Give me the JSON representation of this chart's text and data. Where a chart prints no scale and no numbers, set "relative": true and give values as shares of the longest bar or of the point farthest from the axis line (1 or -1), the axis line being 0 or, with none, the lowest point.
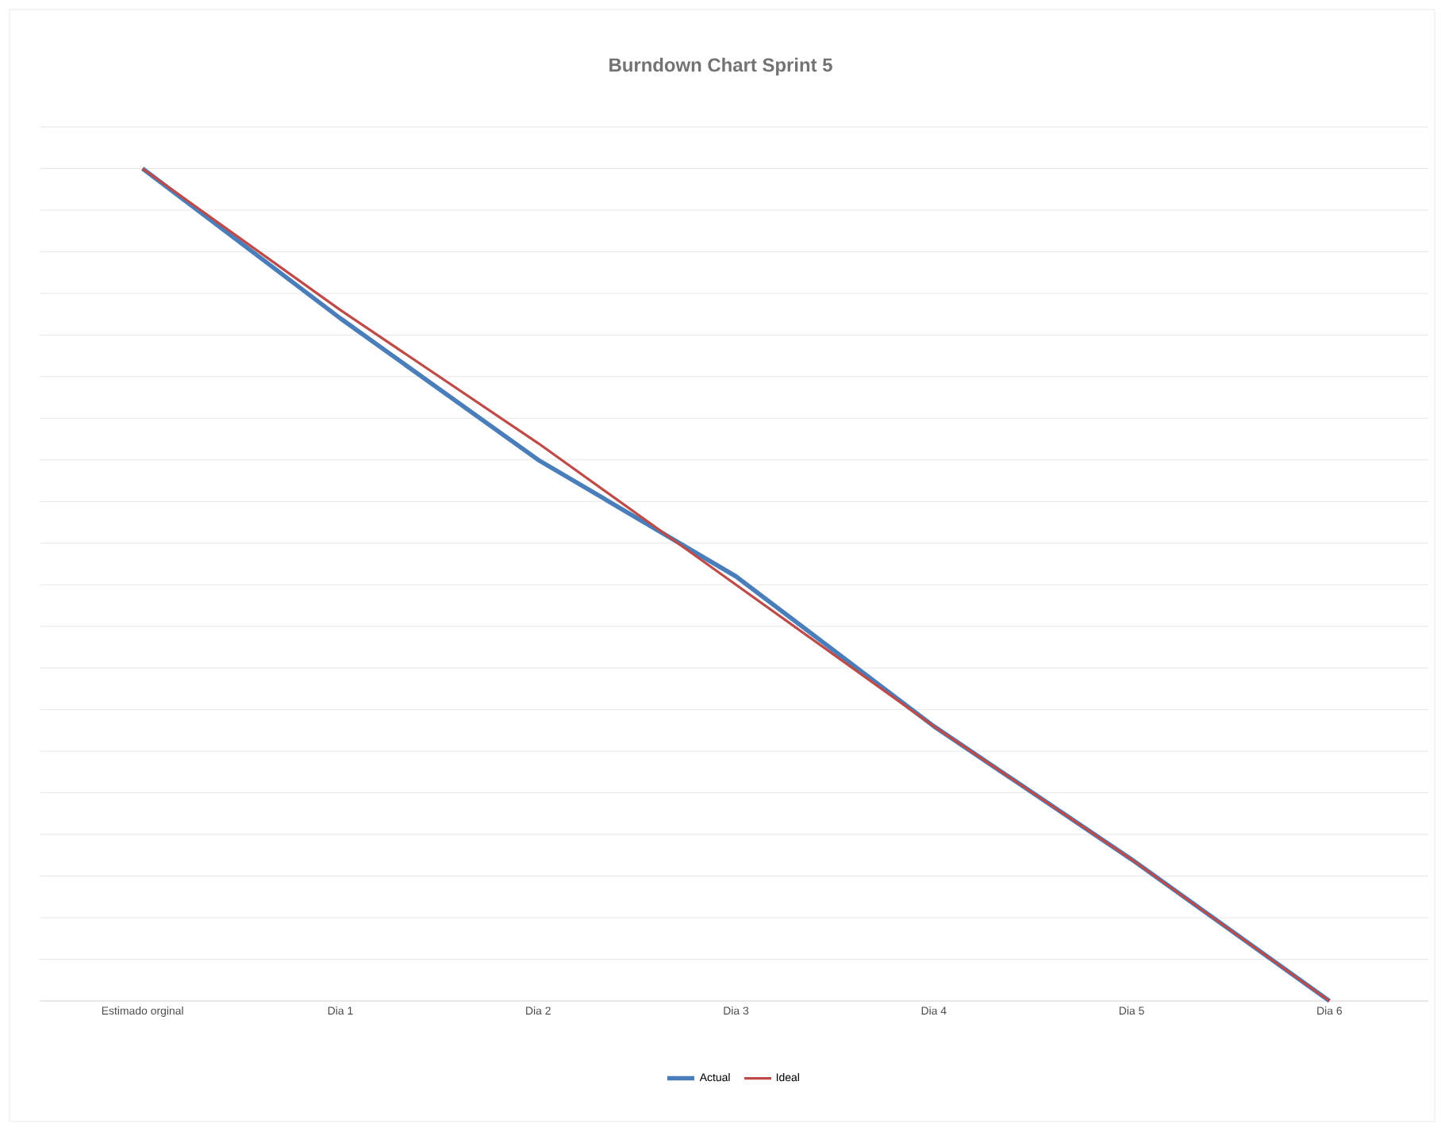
{
  "chart_data": {
    "type": "line",
    "title": "Burndown Chart Sprint 5",
    "relative": true,
    "categories": [
      "Estimado orginal",
      "Dia 1",
      "Dia 2",
      "Dia 3",
      "Dia 4",
      "Dia 5",
      "Dia 6"
    ],
    "series": [
      {
        "name": "Actual",
        "color": "#4a7ebb",
        "values": [
          1,
          0.82,
          0.65,
          0.51,
          0.33,
          0.17,
          0
        ]
      },
      {
        "name": "Ideal",
        "color": "#be4b48",
        "values": [
          1,
          0.83,
          0.67,
          0.5,
          0.33,
          0.17,
          0
        ]
      }
    ],
    "grid": "y",
    "legend": "bottom",
    "marker": "none",
    "line_style": "solid"
  }
}
